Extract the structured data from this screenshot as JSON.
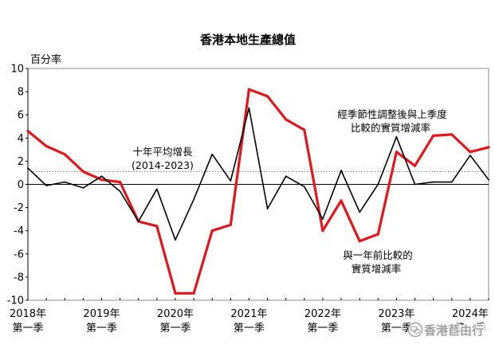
{
  "chart_data": {
    "type": "line",
    "title": "香港本地生產總值",
    "ylabel": "百分率",
    "xlabel": "",
    "ylim": [
      -10,
      10
    ],
    "yticks": [
      10,
      8,
      6,
      4,
      2,
      0,
      -2,
      -4,
      -6,
      -8,
      -10
    ],
    "grid": false,
    "x": [
      [
        2018,
        1
      ],
      [
        2018,
        2
      ],
      [
        2018,
        3
      ],
      [
        2018,
        4
      ],
      [
        2019,
        1
      ],
      [
        2019,
        2
      ],
      [
        2019,
        3
      ],
      [
        2019,
        4
      ],
      [
        2020,
        1
      ],
      [
        2020,
        2
      ],
      [
        2020,
        3
      ],
      [
        2020,
        4
      ],
      [
        2021,
        1
      ],
      [
        2021,
        2
      ],
      [
        2021,
        3
      ],
      [
        2021,
        4
      ],
      [
        2022,
        1
      ],
      [
        2022,
        2
      ],
      [
        2022,
        3
      ],
      [
        2022,
        4
      ],
      [
        2023,
        1
      ],
      [
        2023,
        2
      ],
      [
        2023,
        3
      ],
      [
        2023,
        4
      ],
      [
        2024,
        1
      ],
      [
        2024,
        2
      ]
    ],
    "x_tick_labels": [
      {
        "at": [
          2018,
          1
        ],
        "year": "2018年",
        "quarter": "第一季"
      },
      {
        "at": [
          2019,
          1
        ],
        "year": "2019年",
        "quarter": "第一季"
      },
      {
        "at": [
          2020,
          1
        ],
        "year": "2020年",
        "quarter": "第一季"
      },
      {
        "at": [
          2021,
          1
        ],
        "year": "2021年",
        "quarter": "第一季"
      },
      {
        "at": [
          2022,
          1
        ],
        "year": "2022年",
        "quarter": "第一季"
      },
      {
        "at": [
          2023,
          1
        ],
        "year": "2023年",
        "quarter": "第一季"
      },
      {
        "at": [
          2024,
          1
        ],
        "year": "2024年",
        "quarter": "第一季"
      }
    ],
    "series": [
      {
        "label": [
          "與一年前比較的",
          "實質增減率"
        ],
        "color": "#e3161b",
        "values": [
          4.6,
          3.3,
          2.6,
          1.1,
          0.4,
          0.2,
          -3.2,
          -3.6,
          -9.4,
          -9.4,
          -4.0,
          -3.5,
          8.2,
          7.6,
          5.6,
          4.7,
          -4.0,
          -1.4,
          -4.9,
          -4.3,
          2.8,
          1.6,
          4.2,
          4.3,
          2.8,
          3.2
        ]
      },
      {
        "label": [
          "經季節性調整後與上季度",
          "比較的實質增減率"
        ],
        "color": "#000000",
        "values": [
          1.4,
          -0.1,
          0.2,
          -0.3,
          0.7,
          -0.6,
          -3.2,
          -0.4,
          -4.8,
          -1.3,
          2.6,
          0.3,
          6.6,
          -2.1,
          0.7,
          -0.2,
          -3.0,
          1.2,
          -2.4,
          0.0,
          4.1,
          0.0,
          0.2,
          0.2,
          2.5,
          0.4
        ]
      }
    ],
    "reference_line": {
      "label": [
        "十年平均增長",
        "(2014-2023)"
      ],
      "value": 1.1,
      "color": "#666666"
    }
  },
  "watermark": {
    "text": "香港苣由行",
    "icon": "wechat-icon"
  }
}
